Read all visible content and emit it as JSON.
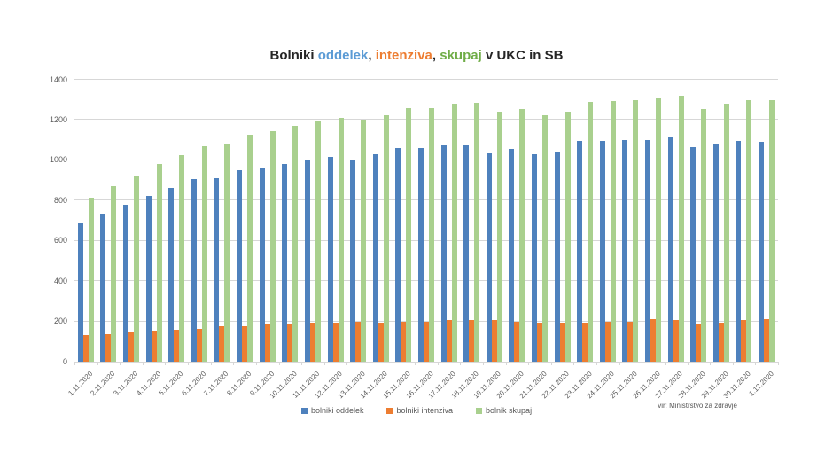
{
  "title": {
    "segments": [
      {
        "text": "Bolniki ",
        "color": "#262626"
      },
      {
        "text": "oddelek",
        "color": "#5B9BD5"
      },
      {
        "text": ", ",
        "color": "#262626"
      },
      {
        "text": "intenziva",
        "color": "#ED7D31"
      },
      {
        "text": ", ",
        "color": "#262626"
      },
      {
        "text": "skupaj",
        "color": "#70AD47"
      },
      {
        "text": " v UKC in SB",
        "color": "#262626"
      }
    ]
  },
  "source_note": "vir: Ministrstvo za zdravje",
  "colors": {
    "bar_oddelek": "#4E81BD",
    "bar_intenziva": "#ED7D31",
    "bar_skupaj": "#A9D08E",
    "gridline": "#d7d7d7",
    "axis_text": "#595959"
  },
  "legend": {
    "items": [
      {
        "label": "bolniki oddelek",
        "color": "#4E81BD"
      },
      {
        "label": "bolniki intenziva",
        "color": "#ED7D31"
      },
      {
        "label": "bolnik skupaj",
        "color": "#A9D08E"
      }
    ]
  },
  "chart_data": {
    "type": "bar",
    "title": "Bolniki oddelek, intenziva, skupaj v UKC in SB",
    "xlabel": "",
    "ylabel": "",
    "ylim": [
      0,
      1400
    ],
    "yticks": [
      0,
      200,
      400,
      600,
      800,
      1000,
      1200,
      1400
    ],
    "grid": true,
    "legend_position": "bottom",
    "categories": [
      "1.11.2020",
      "2.11.2020",
      "3.11.2020",
      "4.11.2020",
      "5.11.2020",
      "6.11.2020",
      "7.11.2020",
      "8.11.2020",
      "9.11.2020",
      "10.11.2020",
      "11.11.2020",
      "12.11.2020",
      "13.11.2020",
      "14.11.2020",
      "15.11.2020",
      "16.11.2020",
      "17.11.2020",
      "18.11.2020",
      "19.11.2020",
      "20.11.2020",
      "21.11.2020",
      "22.11.2020",
      "23.11.2020",
      "24.11.2020",
      "25.11.2020",
      "26.11.2020",
      "27.11.2020",
      "28.11.2020",
      "29.11.2020",
      "30.11.2020",
      "1.12.2020"
    ],
    "series": [
      {
        "name": "bolniki oddelek",
        "color": "#4E81BD",
        "values": [
          685,
          735,
          780,
          825,
          865,
          905,
          910,
          950,
          960,
          980,
          1000,
          1015,
          1000,
          1030,
          1060,
          1060,
          1075,
          1080,
          1035,
          1055,
          1030,
          1045,
          1095,
          1095,
          1100,
          1100,
          1115,
          1065,
          1085,
          1095,
          1090
        ]
      },
      {
        "name": "bolniki intenziva",
        "color": "#ED7D31",
        "values": [
          130,
          135,
          145,
          155,
          160,
          165,
          175,
          175,
          185,
          190,
          195,
          195,
          200,
          195,
          200,
          200,
          205,
          205,
          205,
          200,
          195,
          195,
          195,
          200,
          200,
          210,
          205,
          190,
          195,
          205,
          210
        ]
      },
      {
        "name": "bolnik skupaj",
        "color": "#A9D08E",
        "values": [
          815,
          870,
          925,
          980,
          1025,
          1070,
          1085,
          1125,
          1145,
          1170,
          1195,
          1210,
          1200,
          1225,
          1260,
          1260,
          1280,
          1285,
          1240,
          1255,
          1225,
          1240,
          1290,
          1295,
          1300,
          1310,
          1320,
          1255,
          1280,
          1300,
          1300
        ]
      }
    ]
  }
}
